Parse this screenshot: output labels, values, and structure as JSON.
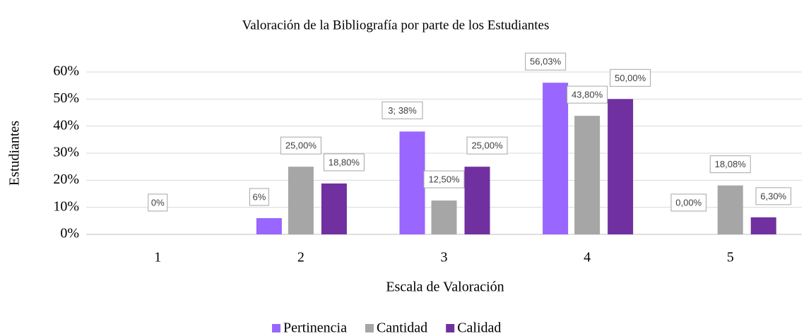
{
  "chart_data": {
    "type": "bar",
    "title": "Valoración de la Bibliografía por parte de los Estudiantes",
    "x_label": "Escala de Valoración",
    "y_label": "Estudiantes",
    "categories": [
      "1",
      "2",
      "3",
      "4",
      "5"
    ],
    "series": [
      {
        "name": "Pertinencia",
        "color": "#9966ff",
        "values": [
          null,
          6,
          38,
          56.03,
          0
        ],
        "value_labels": [
          null,
          "6%",
          "3; 38%",
          "56,03%",
          "0,00%"
        ]
      },
      {
        "name": "Cantidad",
        "color": "#a6a6a6",
        "values": [
          0,
          25,
          12.5,
          43.8,
          18.08
        ],
        "value_labels": [
          "0%",
          "25,00%",
          "12,50%",
          "43,80%",
          "18,08%"
        ]
      },
      {
        "name": "Calidad",
        "color": "#7030a0",
        "values": [
          null,
          18.8,
          25,
          50,
          6.3
        ],
        "value_labels": [
          null,
          "18,80%",
          "25,00%",
          "50,00%",
          "6,30%"
        ]
      }
    ],
    "ylim": [
      0,
      60
    ],
    "yticks": [
      {
        "value": 0,
        "label": "0%"
      },
      {
        "value": 10,
        "label": "10%"
      },
      {
        "value": 20,
        "label": "20%"
      },
      {
        "value": 30,
        "label": "30%"
      },
      {
        "value": 40,
        "label": "40%"
      },
      {
        "value": 50,
        "label": "50%"
      },
      {
        "value": 60,
        "label": "60%"
      }
    ],
    "grid": true,
    "legend": "bottom"
  }
}
